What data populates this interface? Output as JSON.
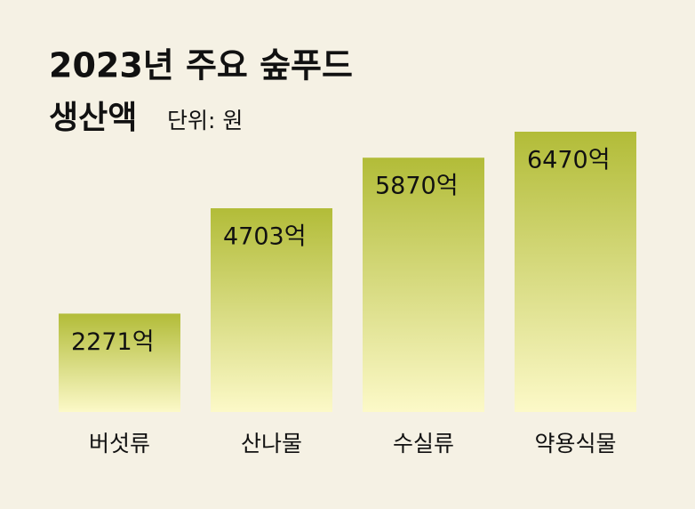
{
  "chart_data": {
    "type": "bar",
    "title": "2023년 주요 숲푸드",
    "subtitle": "생산액",
    "unit_label": "단위: 원",
    "categories": [
      "버섯류",
      "산나물",
      "수실류",
      "약용식물"
    ],
    "values": [
      2271,
      4703,
      5870,
      6470
    ],
    "value_labels": [
      "2271억",
      "4703억",
      "5870억",
      "6470억"
    ],
    "color_top": "#b2bc38",
    "color_bottom": "#fcf9c8"
  }
}
